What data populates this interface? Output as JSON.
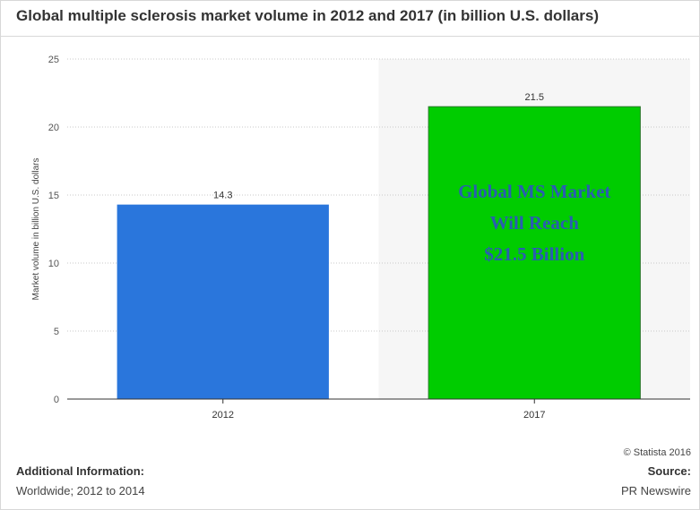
{
  "title": "Global multiple sclerosis market volume in 2012 and 2017 (in billion U.S. dollars)",
  "chart_data": {
    "type": "bar",
    "categories": [
      "2012",
      "2017"
    ],
    "values": [
      14.3,
      21.5
    ],
    "bar_colors": [
      "#2a76dc",
      "#00cc00"
    ],
    "value_labels": [
      "14.3",
      "21.5"
    ],
    "xlabel": "",
    "ylabel": "Market volume in billion U.S. dollars",
    "ylim": [
      0,
      25
    ],
    "yticks": [
      0,
      5,
      10,
      15,
      20,
      25
    ],
    "grid": true,
    "highlight_category": "2017",
    "highlight_color": "#f6f6f6",
    "annotation": {
      "lines": [
        "Global MS Market",
        "Will Reach",
        "$21.5 Billion"
      ],
      "color": "#2a5db0"
    }
  },
  "footer": {
    "copyright": "© Statista 2016",
    "additional_label": "Additional Information:",
    "additional_value": "Worldwide; 2012 to 2014",
    "source_label": "Source:",
    "source_value": "PR Newswire"
  }
}
